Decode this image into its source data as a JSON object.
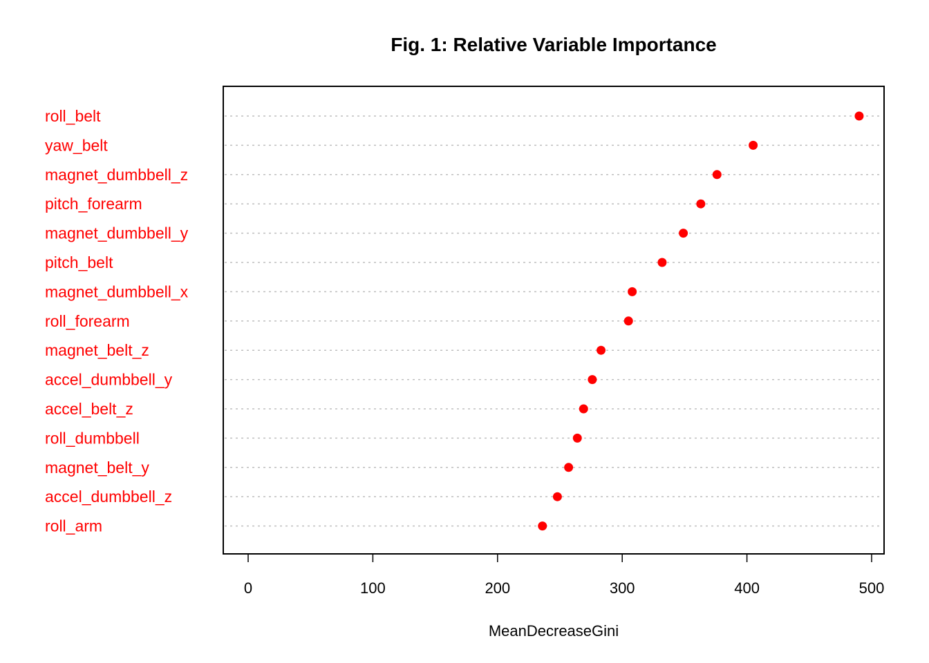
{
  "chart_data": {
    "type": "scatter",
    "subtype": "dotchart",
    "title": "Fig. 1: Relative Variable Importance",
    "xlabel": "MeanDecreaseGini",
    "ylabel": "",
    "xlim": [
      0,
      500
    ],
    "xticks": [
      0,
      100,
      200,
      300,
      400,
      500
    ],
    "grid": "horizontal dotted per category",
    "categories": [
      "roll_belt",
      "yaw_belt",
      "magnet_dumbbell_z",
      "pitch_forearm",
      "magnet_dumbbell_y",
      "pitch_belt",
      "magnet_dumbbell_x",
      "roll_forearm",
      "magnet_belt_z",
      "accel_dumbbell_y",
      "accel_belt_z",
      "roll_dumbbell",
      "magnet_belt_y",
      "accel_dumbbell_z",
      "roll_arm"
    ],
    "values": [
      490,
      405,
      376,
      363,
      349,
      332,
      308,
      305,
      283,
      276,
      269,
      264,
      257,
      248,
      236
    ],
    "colors": {
      "points": "#ff0000",
      "labels": "#ff0000",
      "grid": "#bebebe",
      "frame": "#000000"
    }
  }
}
